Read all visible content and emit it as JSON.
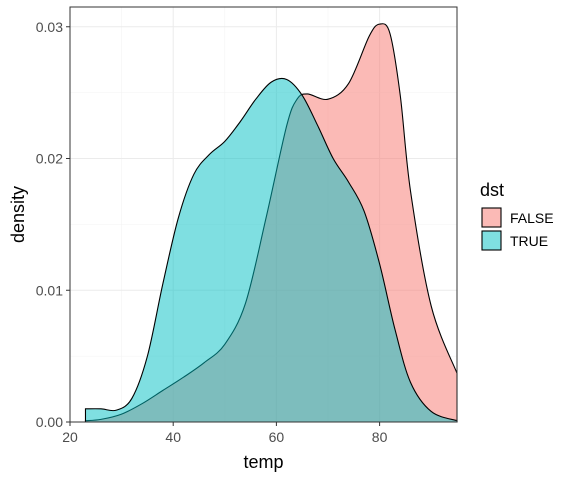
{
  "chart_data": {
    "type": "area",
    "subtype": "density",
    "title": "",
    "xlabel": "temp",
    "ylabel": "density",
    "xlim": [
      20,
      95
    ],
    "ylim": [
      0,
      0.0315
    ],
    "x_ticks": [
      20,
      40,
      60,
      80
    ],
    "y_ticks": [
      0.0,
      0.01,
      0.02,
      0.03
    ],
    "y_tick_labels": [
      "0.00",
      "0.01",
      "0.02",
      "0.03"
    ],
    "grid": true,
    "legend": {
      "title": "dst",
      "position": "right"
    },
    "series": [
      {
        "name": "FALSE",
        "fill": "#F8766D",
        "x": [
          23,
          26,
          30,
          34,
          38,
          42,
          46,
          50,
          54,
          58,
          62,
          64,
          66,
          70,
          74,
          78,
          80,
          82,
          84,
          86,
          90,
          95
        ],
        "values": [
          0.0001,
          0.0002,
          0.0006,
          0.0014,
          0.0024,
          0.0034,
          0.0045,
          0.0059,
          0.009,
          0.0155,
          0.0225,
          0.0245,
          0.0249,
          0.0245,
          0.0257,
          0.0293,
          0.0302,
          0.0295,
          0.0248,
          0.0175,
          0.0088,
          0.0037
        ]
      },
      {
        "name": "TRUE",
        "fill": "#00BFC4",
        "x": [
          23,
          26,
          29,
          32,
          35,
          38,
          41,
          44,
          47,
          50,
          53,
          56,
          59,
          62,
          65,
          68,
          71,
          74,
          77,
          80,
          83,
          86,
          90,
          95
        ],
        "values": [
          0.001,
          0.001,
          0.0009,
          0.0018,
          0.005,
          0.0105,
          0.0155,
          0.0188,
          0.0203,
          0.0213,
          0.0228,
          0.0245,
          0.0258,
          0.026,
          0.0248,
          0.0225,
          0.02,
          0.0182,
          0.016,
          0.012,
          0.007,
          0.003,
          0.0008,
          0.0001
        ]
      }
    ]
  }
}
